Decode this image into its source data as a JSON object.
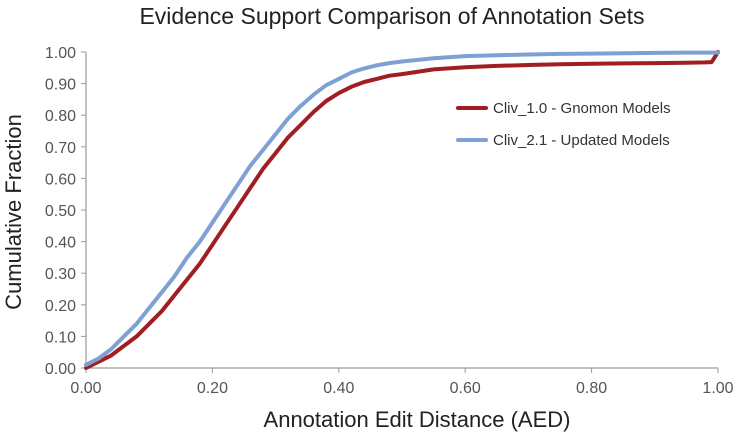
{
  "chart_data": {
    "type": "line",
    "title": "Evidence Support Comparison of Annotation Sets",
    "xlabel": "Annotation Edit Distance (AED)",
    "ylabel": "Cumulative Fraction",
    "xlim": [
      0,
      1
    ],
    "ylim": [
      0,
      1
    ],
    "x_ticks": [
      "0.00",
      "0.20",
      "0.40",
      "0.60",
      "0.80",
      "1.00"
    ],
    "y_ticks": [
      "0.00",
      "0.10",
      "0.20",
      "0.30",
      "0.40",
      "0.50",
      "0.60",
      "0.70",
      "0.80",
      "0.90",
      "1.00"
    ],
    "grid": false,
    "legend_position": "right",
    "series": [
      {
        "name": "Cliv_1.0 - Gnomon Models",
        "color": "#a01e22",
        "x": [
          0.0,
          0.02,
          0.04,
          0.06,
          0.08,
          0.1,
          0.12,
          0.14,
          0.16,
          0.18,
          0.2,
          0.22,
          0.24,
          0.26,
          0.28,
          0.3,
          0.32,
          0.34,
          0.36,
          0.38,
          0.4,
          0.42,
          0.44,
          0.46,
          0.48,
          0.5,
          0.55,
          0.6,
          0.65,
          0.7,
          0.75,
          0.8,
          0.85,
          0.9,
          0.95,
          0.98,
          0.99,
          1.0
        ],
        "y": [
          0.0,
          0.02,
          0.04,
          0.07,
          0.1,
          0.14,
          0.18,
          0.23,
          0.28,
          0.33,
          0.39,
          0.45,
          0.51,
          0.57,
          0.63,
          0.68,
          0.73,
          0.77,
          0.81,
          0.845,
          0.87,
          0.89,
          0.905,
          0.915,
          0.925,
          0.93,
          0.945,
          0.952,
          0.956,
          0.959,
          0.961,
          0.963,
          0.964,
          0.965,
          0.966,
          0.967,
          0.968,
          1.0
        ]
      },
      {
        "name": "Cliv_2.1 - Updated Models",
        "color": "#7ea1d3",
        "x": [
          0.0,
          0.02,
          0.04,
          0.06,
          0.08,
          0.1,
          0.12,
          0.14,
          0.16,
          0.18,
          0.2,
          0.22,
          0.24,
          0.26,
          0.28,
          0.3,
          0.32,
          0.34,
          0.36,
          0.38,
          0.4,
          0.42,
          0.44,
          0.46,
          0.48,
          0.5,
          0.55,
          0.6,
          0.65,
          0.7,
          0.75,
          0.8,
          0.85,
          0.9,
          0.95,
          1.0
        ],
        "y": [
          0.01,
          0.03,
          0.06,
          0.1,
          0.14,
          0.19,
          0.24,
          0.29,
          0.35,
          0.4,
          0.46,
          0.52,
          0.58,
          0.64,
          0.69,
          0.74,
          0.79,
          0.83,
          0.865,
          0.895,
          0.915,
          0.935,
          0.948,
          0.958,
          0.965,
          0.97,
          0.98,
          0.987,
          0.99,
          0.992,
          0.994,
          0.995,
          0.996,
          0.997,
          0.998,
          0.998
        ]
      }
    ]
  }
}
